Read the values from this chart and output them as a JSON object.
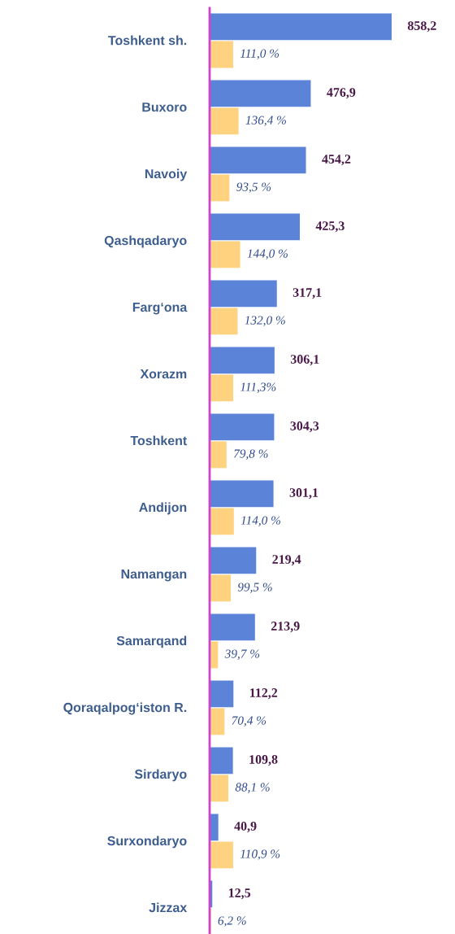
{
  "chart_data": {
    "type": "bar",
    "orientation": "horizontal",
    "tick_labels": "y",
    "categories": [
      "Toshkent sh.",
      "Buxoro",
      "Navoiy",
      "Qashqadaryo",
      "Farg‘ona",
      "Xorazm",
      "Toshkent",
      "Andijon",
      "Namangan",
      "Samarqand",
      "Qoraqalpog‘iston R.",
      "Sirdaryo",
      "Surxondaryo",
      "Jizzax"
    ],
    "series": [
      {
        "color": "#5b84d9",
        "values": [
          858.2,
          476.9,
          454.2,
          425.3,
          317.1,
          306.1,
          304.3,
          301.1,
          219.4,
          213.9,
          112.2,
          109.8,
          40.9,
          12.5
        ],
        "value_labels": [
          "858,2",
          "476,9",
          "454,2",
          "425,3",
          "317,1",
          "306,1",
          "304,3",
          "301,1",
          "219,4",
          "213,9",
          "112,2",
          "109,8",
          "40,9",
          "12,5"
        ]
      },
      {
        "color": "#ffd280",
        "values": [
          111.0,
          136.4,
          93.5,
          144.0,
          132.0,
          111.3,
          79.8,
          114.0,
          99.5,
          39.7,
          70.4,
          88.1,
          110.9,
          6.2
        ],
        "value_labels": [
          "111,0 %",
          "136,4 %",
          "93,5 %",
          "144,0 %",
          "132,0 %",
          "111,3%",
          "79,8 %",
          "114,0 %",
          "99,5 %",
          "39,7 %",
          "70,4 %",
          "88,1 %",
          "110,9 %",
          "6,2 %"
        ]
      }
    ]
  }
}
